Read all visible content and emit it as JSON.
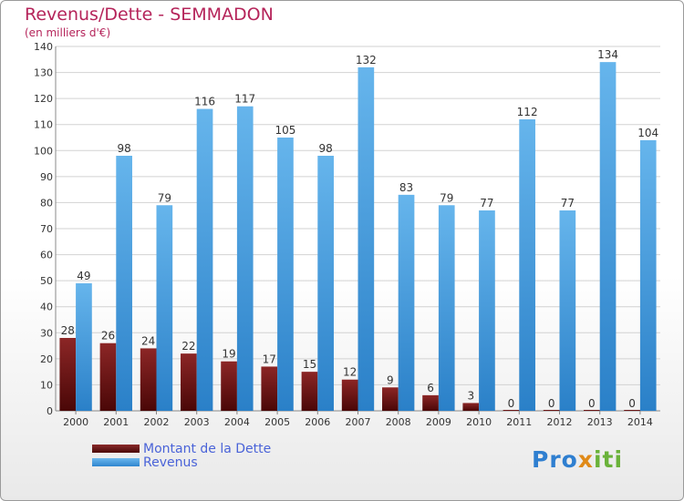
{
  "header": {
    "title": "Revenus/Dette - SEMMADON",
    "subtitle": "(en milliers d'€)"
  },
  "legend": {
    "dette_label": "Montant de la Dette",
    "revenus_label": "Revenus"
  },
  "logo": {
    "part1": "Pro",
    "part2": "x",
    "part3": "iti"
  },
  "colors": {
    "dette": "#6b1414",
    "revenus": "#4fa3e3",
    "title": "#b5245a",
    "legend_text": "#4a63d8"
  },
  "chart_data": {
    "type": "bar",
    "title": "Revenus/Dette - SEMMADON",
    "subtitle": "(en milliers d'€)",
    "categories": [
      "2000",
      "2001",
      "2002",
      "2003",
      "2004",
      "2005",
      "2006",
      "2007",
      "2008",
      "2009",
      "2010",
      "2011",
      "2012",
      "2013",
      "2014"
    ],
    "series": [
      {
        "name": "Montant de la Dette",
        "values": [
          28,
          26,
          24,
          22,
          19,
          17,
          15,
          12,
          9,
          6,
          3,
          0,
          0,
          0,
          0
        ]
      },
      {
        "name": "Revenus",
        "values": [
          49,
          98,
          79,
          116,
          117,
          105,
          98,
          132,
          83,
          79,
          77,
          112,
          77,
          134,
          104
        ]
      }
    ],
    "ylim": [
      0,
      140
    ],
    "yticks": [
      0,
      10,
      20,
      30,
      40,
      50,
      60,
      70,
      80,
      90,
      100,
      110,
      120,
      130,
      140
    ],
    "grid": true,
    "legend_position": "bottom-left"
  }
}
